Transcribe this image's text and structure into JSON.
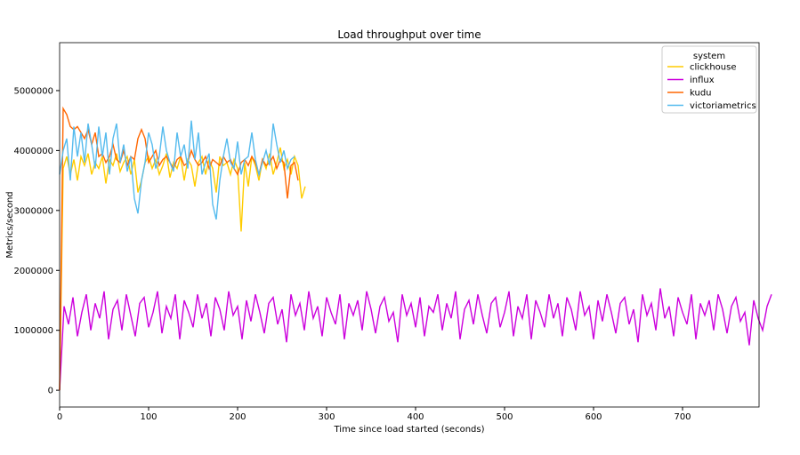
{
  "chart_data": {
    "type": "line",
    "title": "Load throughput over time",
    "xlabel": "Time since load started (seconds)",
    "ylabel": "Metrics/second",
    "xlim": [
      0,
      786
    ],
    "ylim": [
      -280000,
      5800000
    ],
    "xticks": [
      0,
      100,
      200,
      300,
      400,
      500,
      600,
      700
    ],
    "yticks": [
      0,
      1000000,
      2000000,
      3000000,
      4000000,
      5000000
    ],
    "grid": false,
    "legend": {
      "title": "system",
      "position": "top-right"
    },
    "series": [
      {
        "name": "clickhouse",
        "color": "#ffcc00",
        "x_step": 4,
        "values": [
          0,
          3700000,
          3900000,
          3600000,
          3850000,
          3500000,
          3900000,
          3750000,
          3950000,
          3600000,
          3800000,
          3700000,
          3900000,
          3450000,
          3850000,
          3750000,
          3950000,
          3650000,
          3800000,
          3900000,
          3600000,
          3850000,
          3300000,
          3500000,
          3800000,
          3900000,
          3700000,
          3850000,
          3600000,
          3750000,
          3950000,
          3550000,
          3800000,
          3700000,
          3900000,
          3500000,
          3850000,
          3750000,
          3400000,
          3800000,
          3900000,
          3600000,
          3850000,
          3700000,
          3300000,
          3900000,
          3750000,
          3800000,
          3600000,
          3850000,
          3700000,
          2650000,
          3800000,
          3400000,
          3900000,
          3750000,
          3500000,
          3850000,
          3700000,
          3950000,
          3600000,
          3800000,
          4050000,
          3700000,
          3850000,
          3600000,
          3900000,
          3750000,
          3200000,
          3400000
        ]
      },
      {
        "name": "influx",
        "color": "#cc00dd",
        "x_step": 5,
        "values": [
          0,
          1400000,
          1100000,
          1550000,
          900000,
          1300000,
          1600000,
          1000000,
          1450000,
          1200000,
          1650000,
          850000,
          1350000,
          1500000,
          1000000,
          1600000,
          1250000,
          900000,
          1450000,
          1550000,
          1050000,
          1300000,
          1650000,
          950000,
          1400000,
          1200000,
          1600000,
          850000,
          1500000,
          1300000,
          1050000,
          1600000,
          1200000,
          1450000,
          900000,
          1550000,
          1350000,
          1000000,
          1650000,
          1250000,
          1400000,
          850000,
          1500000,
          1150000,
          1600000,
          1300000,
          950000,
          1450000,
          1550000,
          1100000,
          1350000,
          800000,
          1600000,
          1250000,
          1450000,
          1000000,
          1650000,
          1200000,
          1400000,
          900000,
          1550000,
          1300000,
          1100000,
          1600000,
          850000,
          1450000,
          1250000,
          1500000,
          1000000,
          1650000,
          1350000,
          950000,
          1400000,
          1550000,
          1150000,
          1300000,
          800000,
          1600000,
          1250000,
          1450000,
          1050000,
          1550000,
          900000,
          1400000,
          1300000,
          1600000,
          1000000,
          1450000,
          1200000,
          1650000,
          850000,
          1350000,
          1500000,
          1100000,
          1600000,
          1250000,
          950000,
          1450000,
          1550000,
          1050000,
          1300000,
          1650000,
          900000,
          1400000,
          1200000,
          1600000,
          850000,
          1500000,
          1300000,
          1050000,
          1600000,
          1200000,
          1450000,
          900000,
          1550000,
          1350000,
          1000000,
          1650000,
          1250000,
          1400000,
          850000,
          1500000,
          1150000,
          1600000,
          1300000,
          950000,
          1450000,
          1550000,
          1100000,
          1350000,
          800000,
          1600000,
          1250000,
          1450000,
          1000000,
          1700000,
          1200000,
          1400000,
          900000,
          1550000,
          1300000,
          1100000,
          1600000,
          850000,
          1450000,
          1250000,
          1500000,
          1000000,
          1600000,
          1350000,
          950000,
          1400000,
          1550000,
          1150000,
          1300000,
          750000,
          1500000,
          1200000,
          1000000,
          1400000,
          1600000
        ]
      },
      {
        "name": "kudu",
        "color": "#ff6600",
        "x_step": 4,
        "values": [
          0,
          4700000,
          4600000,
          4400000,
          4350000,
          4400000,
          4300000,
          4200000,
          4350000,
          4100000,
          4300000,
          3900000,
          3950000,
          3800000,
          3900000,
          4100000,
          3850000,
          3800000,
          4000000,
          3750000,
          3900000,
          3850000,
          4200000,
          4350000,
          4200000,
          3800000,
          3900000,
          4000000,
          3750000,
          3850000,
          3900000,
          3800000,
          3700000,
          3850000,
          3900000,
          3750000,
          3800000,
          4000000,
          3850000,
          3750000,
          3800000,
          3900000,
          3700000,
          3850000,
          3800000,
          3750000,
          3900000,
          3800000,
          3850000,
          3700000,
          3600000,
          3800000,
          3850000,
          3750000,
          3900000,
          3800000,
          3600000,
          3850000,
          3750000,
          3800000,
          3900000,
          3700000,
          3850000,
          3800000,
          3200000,
          3750000,
          3800000,
          3500000
        ]
      },
      {
        "name": "victoriametrics",
        "color": "#55bbee",
        "x_step": 4,
        "values": [
          3600000,
          4000000,
          4200000,
          3500000,
          4400000,
          3900000,
          4300000,
          3800000,
          4450000,
          4100000,
          3700000,
          4400000,
          3900000,
          4300000,
          3600000,
          4200000,
          4450000,
          3800000,
          4100000,
          3650000,
          3900000,
          3200000,
          2950000,
          3500000,
          3800000,
          4300000,
          4100000,
          3700000,
          3900000,
          4400000,
          4000000,
          3800000,
          3650000,
          4300000,
          3900000,
          4100000,
          3700000,
          4500000,
          3850000,
          4300000,
          3600000,
          3800000,
          3950000,
          3100000,
          2850000,
          3500000,
          3900000,
          4200000,
          3800000,
          3700000,
          4150000,
          3600000,
          3850000,
          3900000,
          4300000,
          3850000,
          3600000,
          3800000,
          4000000,
          3750000,
          4450000,
          4100000,
          3800000,
          4000000,
          3700000,
          3850000,
          3900000
        ]
      }
    ]
  }
}
